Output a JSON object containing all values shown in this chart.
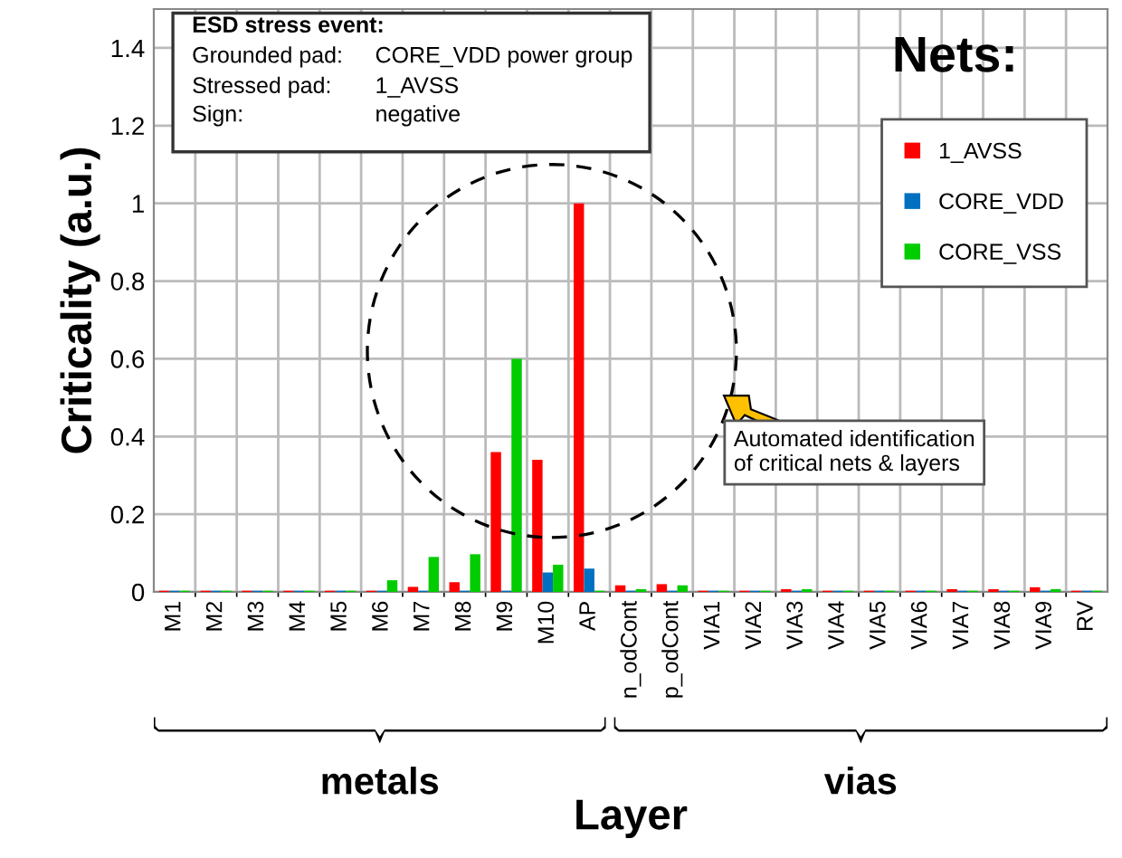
{
  "chart_data": {
    "type": "bar",
    "categories": [
      "M1",
      "M2",
      "M3",
      "M4",
      "M5",
      "M6",
      "M7",
      "M8",
      "M9",
      "M10",
      "AP",
      "n_odCont",
      "p_odCont",
      "VIA1",
      "VIA2",
      "VIA3",
      "VIA4",
      "VIA5",
      "VIA6",
      "VIA7",
      "VIA8",
      "VIA9",
      "RV"
    ],
    "series": [
      {
        "name": "1_AVSS",
        "color": "#ff0000",
        "values": [
          0.003,
          0.003,
          0.003,
          0.003,
          0.003,
          0.003,
          0.013,
          0.025,
          0.36,
          0.34,
          1.0,
          0.017,
          0.02,
          0.003,
          0.003,
          0.007,
          0.003,
          0.003,
          0.003,
          0.007,
          0.007,
          0.012,
          0.003
        ]
      },
      {
        "name": "CORE_VDD",
        "color": "#0070c0",
        "values": [
          0.003,
          0.003,
          0.003,
          0.003,
          0.003,
          0.003,
          0.003,
          0.003,
          0.003,
          0.05,
          0.06,
          0.003,
          0.003,
          0.003,
          0.003,
          0.003,
          0.003,
          0.003,
          0.003,
          0.003,
          0.003,
          0.003,
          0.003
        ]
      },
      {
        "name": "CORE_VSS",
        "color": "#00cc00",
        "values": [
          0.003,
          0.003,
          0.003,
          0.003,
          0.003,
          0.03,
          0.09,
          0.097,
          0.6,
          0.07,
          0.003,
          0.007,
          0.017,
          0.003,
          0.003,
          0.007,
          0.003,
          0.003,
          0.003,
          0.003,
          0.003,
          0.007,
          0.003
        ]
      }
    ],
    "ylim": [
      0,
      1.5
    ],
    "yticks": [
      0,
      0.2,
      0.4,
      0.6,
      0.8,
      {
        "value": 1,
        "label": "1"
      },
      1.2,
      1.4
    ],
    "xlabel": "Layer",
    "ylabel": "Criticality (a.u.)",
    "legend_title": "Nets:",
    "legend": "top right",
    "grid": true,
    "annotations": [
      "ESD stress event:",
      "Grounded pad:",
      "CORE_VDD power group",
      "Stressed pad:",
      "1_AVSS",
      "Sign:",
      "negative",
      "Automated identification\nof critical nets & layers",
      "metals",
      "vias"
    ]
  }
}
